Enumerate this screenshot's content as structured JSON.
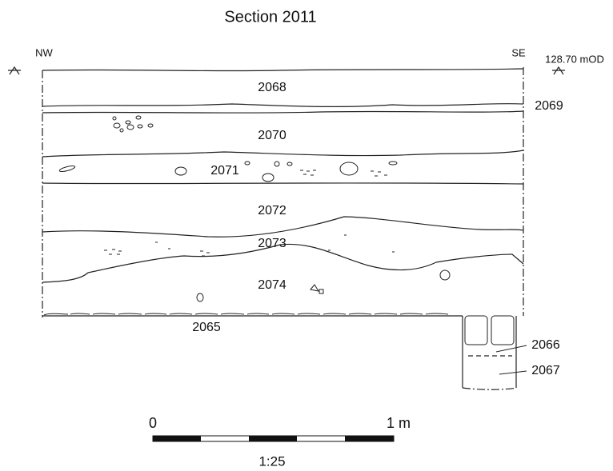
{
  "title": "Section 2011",
  "orientation": {
    "left": "NW",
    "right": "SE"
  },
  "datum": "128.70 mOD",
  "contexts": [
    "2068",
    "2069",
    "2070",
    "2071",
    "2072",
    "2073",
    "2074",
    "2065",
    "2066",
    "2067"
  ],
  "scale": {
    "start": "0",
    "end": "1 m",
    "ratio": "1:25"
  }
}
